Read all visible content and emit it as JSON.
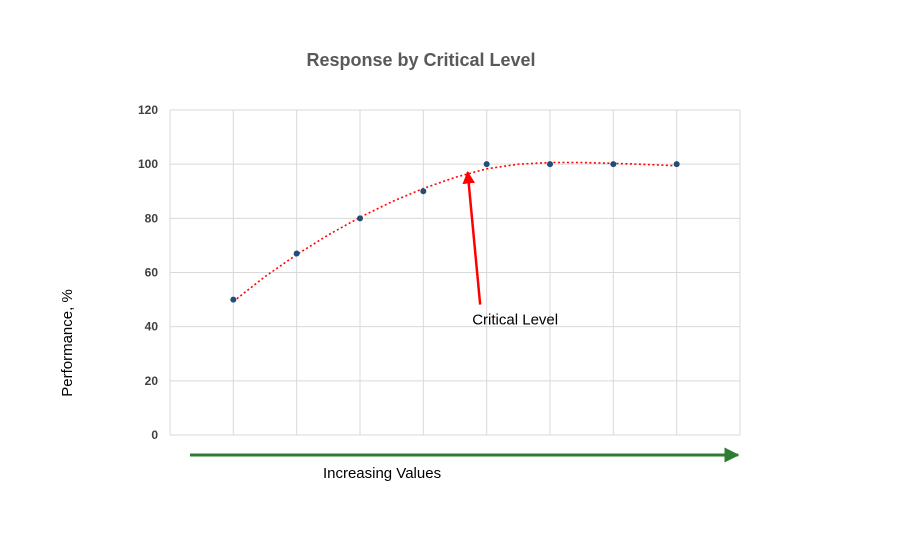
{
  "chart_data": {
    "type": "scatter",
    "title": "Response by Critical Level",
    "xlabel": "Increasing Values",
    "ylabel": "Performance, %",
    "xlim": [
      0,
      9
    ],
    "ylim": [
      0,
      120
    ],
    "yticks": [
      0,
      20,
      40,
      60,
      80,
      100,
      120
    ],
    "grid": true,
    "legend": "none",
    "series": [
      {
        "x": [
          1,
          2,
          3,
          4,
          5,
          6,
          7,
          8
        ],
        "values": [
          50,
          67,
          80,
          90,
          100,
          100,
          100,
          100
        ]
      }
    ],
    "trendline": {
      "style": "dotted",
      "x": [
        1,
        1.5,
        2,
        2.5,
        3,
        3.5,
        4,
        4.5,
        5,
        5.5,
        6,
        6.5,
        7,
        7.5,
        8
      ],
      "values": [
        49.3,
        58.5,
        66.6,
        73.9,
        80.4,
        86.1,
        91,
        95.1,
        98.3,
        100,
        100.6,
        100.6,
        100.3,
        99.9,
        99.4
      ]
    },
    "annotations": [
      {
        "text": "Critical Level",
        "x": 4.7,
        "y": 97,
        "text_x": 5.45,
        "text_y": 40
      }
    ],
    "x_arrow": true,
    "colors": {
      "points": "#1f4e79",
      "trendline": "#ff0000",
      "annotation_arrow": "#ff0000",
      "x_arrow": "#2e7d32",
      "grid": "#d9d9d9",
      "title": "#595959",
      "tick": "#404040"
    }
  }
}
